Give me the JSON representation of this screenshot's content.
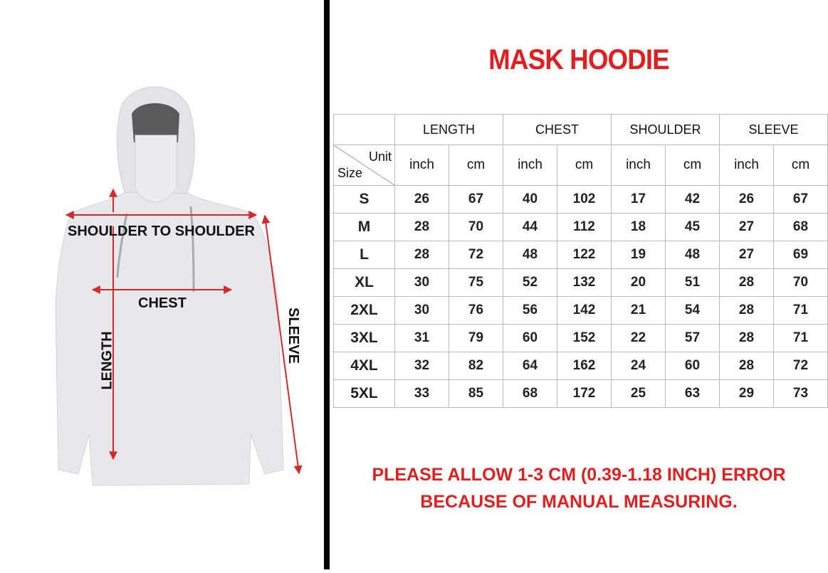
{
  "title": "MASK HOODIE",
  "diagram": {
    "labels": {
      "shoulder": "SHOULDER TO SHOULDER",
      "chest": "CHEST",
      "length": "LENGTH",
      "sleeve": "SLEEVE"
    },
    "colors": {
      "arrow": "#d42a2a",
      "garment": "#e8e8ea"
    }
  },
  "table": {
    "groups": [
      "LENGTH",
      "CHEST",
      "SHOULDER",
      "SLEEVE"
    ],
    "corner": {
      "unit": "Unit",
      "size": "Size"
    },
    "units": [
      "inch",
      "cm",
      "inch",
      "cm",
      "inch",
      "cm",
      "inch",
      "cm"
    ],
    "rows": [
      {
        "size": "S",
        "values": [
          "26",
          "67",
          "40",
          "102",
          "17",
          "42",
          "26",
          "67"
        ]
      },
      {
        "size": "M",
        "values": [
          "28",
          "70",
          "44",
          "112",
          "18",
          "45",
          "27",
          "68"
        ]
      },
      {
        "size": "L",
        "values": [
          "28",
          "72",
          "48",
          "122",
          "19",
          "48",
          "27",
          "69"
        ]
      },
      {
        "size": "XL",
        "values": [
          "30",
          "75",
          "52",
          "132",
          "20",
          "51",
          "28",
          "70"
        ]
      },
      {
        "size": "2XL",
        "values": [
          "30",
          "76",
          "56",
          "142",
          "21",
          "54",
          "28",
          "71"
        ]
      },
      {
        "size": "3XL",
        "values": [
          "31",
          "79",
          "60",
          "152",
          "22",
          "57",
          "28",
          "71"
        ]
      },
      {
        "size": "4XL",
        "values": [
          "32",
          "82",
          "64",
          "162",
          "24",
          "60",
          "28",
          "72"
        ]
      },
      {
        "size": "5XL",
        "values": [
          "33",
          "85",
          "68",
          "172",
          "25",
          "63",
          "29",
          "73"
        ]
      }
    ]
  },
  "note": {
    "line1": "PLEASE ALLOW 1-3 CM (0.39-1.18 INCH) ERROR",
    "line2": "BECAUSE OF MANUAL MEASURING."
  },
  "colors": {
    "accent": "#e02020",
    "divider": "#000000",
    "grid": "#bbbbbb"
  }
}
